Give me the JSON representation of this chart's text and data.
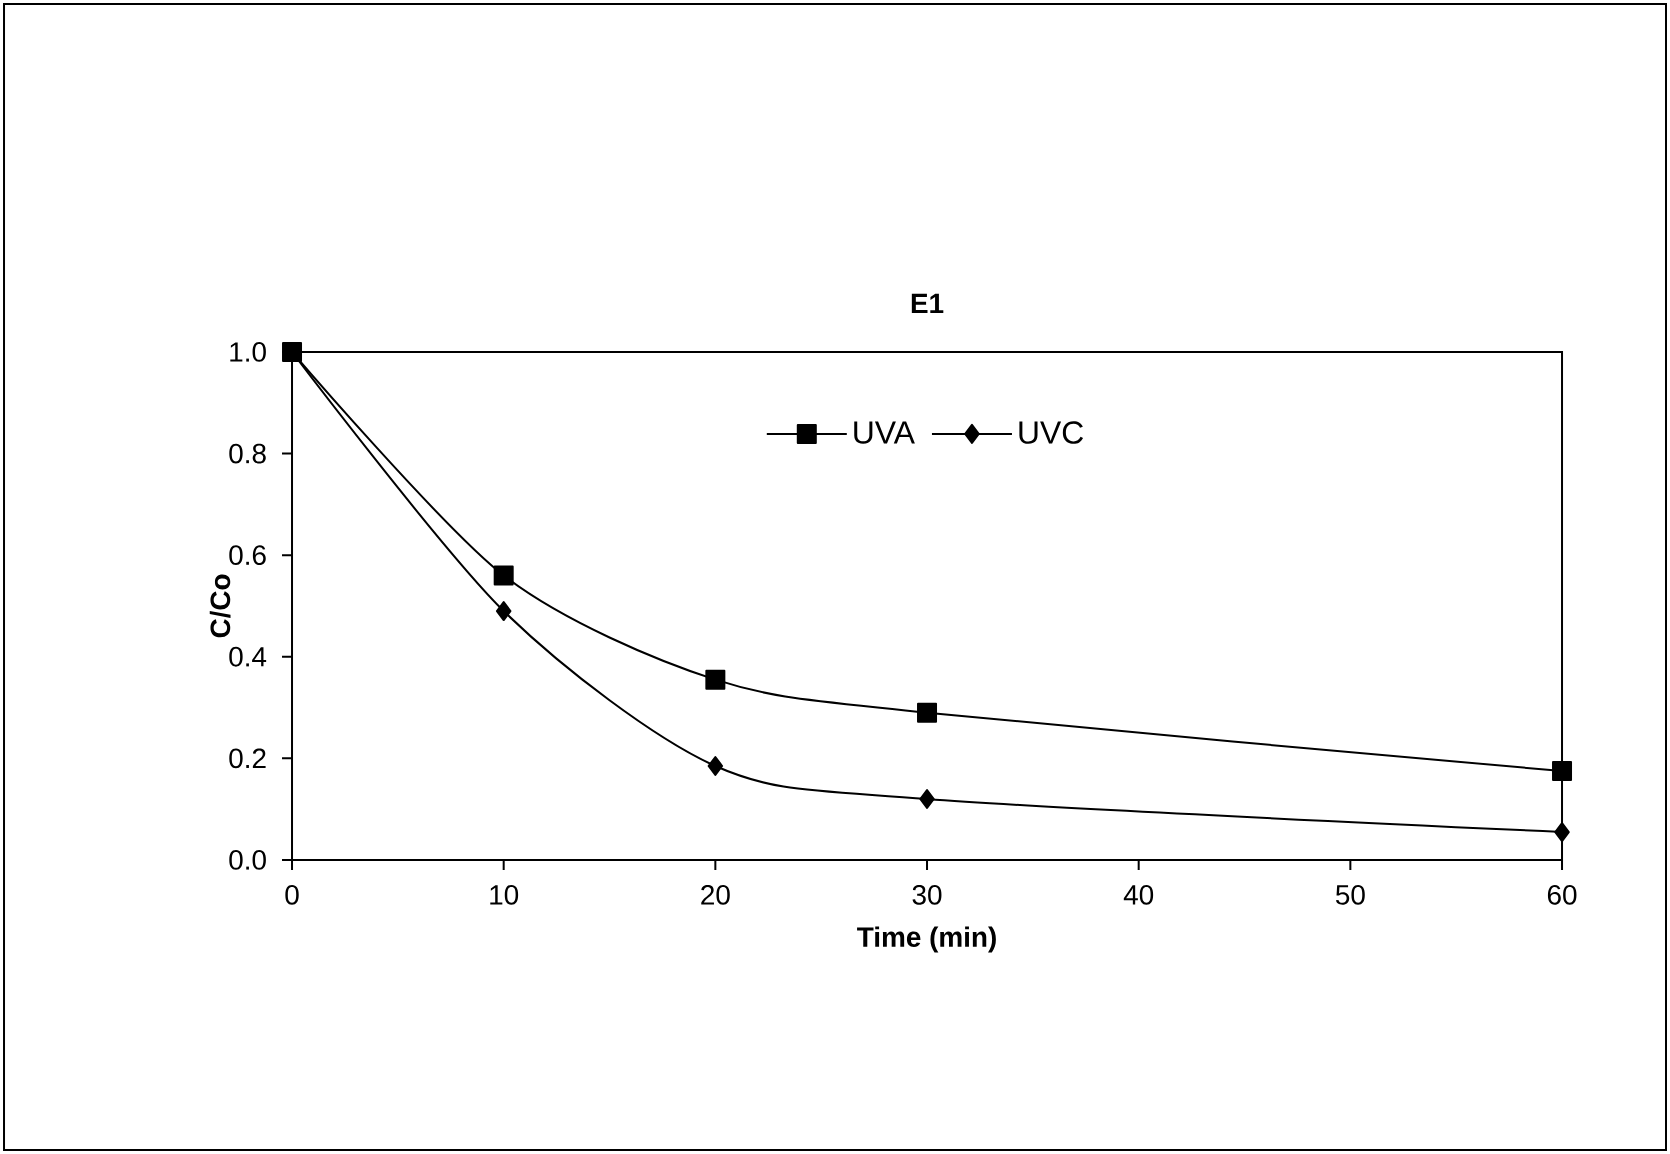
{
  "chart_data": {
    "type": "line",
    "title": "E1",
    "xlabel": "Time (min)",
    "ylabel": "C/Co",
    "x": [
      0,
      10,
      20,
      30,
      60
    ],
    "series": [
      {
        "name": "UVA",
        "color": "#000000",
        "marker": "square",
        "values": [
          1.0,
          0.56,
          0.355,
          0.29,
          0.175
        ]
      },
      {
        "name": "UVC",
        "color": "#000000",
        "marker": "diamond",
        "values": [
          1.0,
          0.49,
          0.185,
          0.12,
          0.055
        ]
      }
    ],
    "xlim": [
      0,
      60
    ],
    "xticks": [
      0,
      10,
      20,
      30,
      40,
      50,
      60
    ],
    "ylim": [
      0,
      1.0
    ],
    "yticks": [
      {
        "value": 0,
        "label": "0.0"
      },
      {
        "value": 0.2,
        "label": "0.2"
      },
      {
        "value": 0.4,
        "label": "0.4"
      },
      {
        "value": 0.6,
        "label": "0.6"
      },
      {
        "value": 0.8,
        "label": "0.8"
      },
      {
        "value": 1.0,
        "label": "1.0"
      }
    ],
    "grid": false,
    "legend": "top",
    "line_style": "solid"
  }
}
